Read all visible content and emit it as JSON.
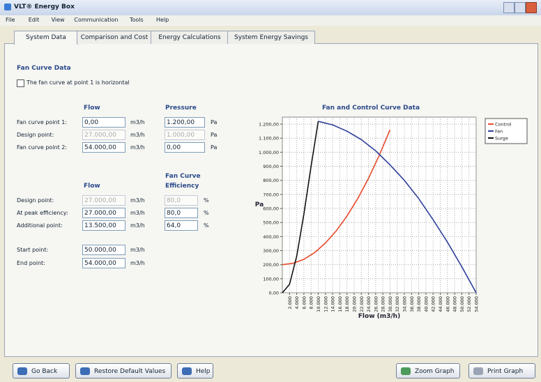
{
  "window": {
    "title": "VLT® Energy Box",
    "menu": [
      "File",
      "Edit",
      "View",
      "Communication",
      "Tools",
      "Help"
    ],
    "tabs": [
      "System Data",
      "Comparison and Cost",
      "Energy Calculations",
      "System Energy Savings"
    ]
  },
  "form": {
    "section": "Fan Curve Data",
    "checkbox": "The fan curve at point 1 is horizontal",
    "pressure_block": {
      "flow_header": "Flow",
      "pressure_header": "Pressure",
      "rows": [
        {
          "label": "Fan curve point 1:",
          "flow": "0,00",
          "flow_unit": "m3/h",
          "pressure": "1.200,00",
          "pressure_unit": "Pa"
        },
        {
          "label": "Design point:",
          "flow": "27.000,00",
          "flow_unit": "m3/h",
          "pressure": "1.000,00",
          "pressure_unit": "Pa",
          "disabled": true
        },
        {
          "label": "Fan curve point 2:",
          "flow": "54.000,00",
          "flow_unit": "m3/h",
          "pressure": "0,00",
          "pressure_unit": "Pa"
        }
      ]
    },
    "efficiency_block": {
      "flow_header": "Flow",
      "efficiency_header": [
        "Fan Curve",
        "Efficiency"
      ],
      "rows": [
        {
          "label": "Design point:",
          "flow": "27.000,00",
          "flow_unit": "m3/h",
          "efficiency": "80,0",
          "efficiency_unit": "%",
          "disabled": true
        },
        {
          "label": "At peak efficiency:",
          "flow": "27.000,00",
          "flow_unit": "m3/h",
          "efficiency": "80,0",
          "efficiency_unit": "%"
        },
        {
          "label": "Additional point:",
          "flow": "13.500,00",
          "flow_unit": "m3/h",
          "efficiency": "64,0",
          "efficiency_unit": "%"
        }
      ]
    },
    "range_block": [
      {
        "label": "Start point:",
        "value": "50.000,00",
        "unit": "m3/h"
      },
      {
        "label": "End point:",
        "value": "54.000,00",
        "unit": "m3/h"
      }
    ]
  },
  "buttons": {
    "left": [
      "Go Back",
      "Restore Default Values",
      "Help"
    ],
    "right": [
      "Zoom Graph",
      "Print Graph"
    ]
  },
  "chart_data": {
    "type": "line",
    "title": "Fan and Control Curve Data",
    "xlabel": "Flow (m3/h)",
    "ylabel": "Pa",
    "xlim": [
      0,
      54000
    ],
    "ylim": [
      0,
      1250
    ],
    "grid": true,
    "legend": "right",
    "xticks": [
      {
        "value": 2000,
        "label": "2.000"
      },
      {
        "value": 4000,
        "label": "4.000"
      },
      {
        "value": 6000,
        "label": "6.000"
      },
      {
        "value": 8000,
        "label": "8.000"
      },
      {
        "value": 10000,
        "label": "10.000"
      },
      {
        "value": 12000,
        "label": "12.000"
      },
      {
        "value": 14000,
        "label": "14.000"
      },
      {
        "value": 16000,
        "label": "16.000"
      },
      {
        "value": 18000,
        "label": "18.000"
      },
      {
        "value": 20000,
        "label": "20.000"
      },
      {
        "value": 22000,
        "label": "22.000"
      },
      {
        "value": 24000,
        "label": "24.000"
      },
      {
        "value": 26000,
        "label": "26.000"
      },
      {
        "value": 28000,
        "label": "28.000"
      },
      {
        "value": 30000,
        "label": "30.000"
      },
      {
        "value": 32000,
        "label": "32.000"
      },
      {
        "value": 34000,
        "label": "34.000"
      },
      {
        "value": 36000,
        "label": "36.000"
      },
      {
        "value": 38000,
        "label": "38.000"
      },
      {
        "value": 40000,
        "label": "40.000"
      },
      {
        "value": 42000,
        "label": "42.000"
      },
      {
        "value": 44000,
        "label": "44.000"
      },
      {
        "value": 46000,
        "label": "46.000"
      },
      {
        "value": 48000,
        "label": "48.000"
      },
      {
        "value": 50000,
        "label": "50.000"
      },
      {
        "value": 52000,
        "label": "52.000"
      },
      {
        "value": 54000,
        "label": "54.000"
      }
    ],
    "yticks": [
      {
        "value": 0,
        "label": "0,00"
      },
      {
        "value": 100,
        "label": "100,00"
      },
      {
        "value": 200,
        "label": "200,00"
      },
      {
        "value": 300,
        "label": "300,00"
      },
      {
        "value": 400,
        "label": "400,00"
      },
      {
        "value": 500,
        "label": "500,00"
      },
      {
        "value": 600,
        "label": "600,00"
      },
      {
        "value": 700,
        "label": "700,00"
      },
      {
        "value": 800,
        "label": "800,00"
      },
      {
        "value": 900,
        "label": "900,00"
      },
      {
        "value": 1000,
        "label": "1.000,00"
      },
      {
        "value": 1100,
        "label": "1.100,00"
      },
      {
        "value": 1200,
        "label": "1.200,00"
      }
    ],
    "series": [
      {
        "name": "Control",
        "color": "#e8492a",
        "x": [
          0,
          3000,
          6000,
          9000,
          12000,
          15000,
          18000,
          21000,
          24000,
          27000,
          30000
        ],
        "values": [
          200,
          210,
          238,
          286,
          354,
          440,
          546,
          670,
          814,
          978,
          1160
        ]
      },
      {
        "name": "Fan",
        "color": "#2e3f9a",
        "x": [
          10000,
          14000,
          18000,
          22000,
          26000,
          30000,
          34000,
          38000,
          42000,
          46000,
          50000,
          54000
        ],
        "values": [
          1220,
          1195,
          1150,
          1090,
          1010,
          910,
          800,
          670,
          520,
          360,
          185,
          0
        ]
      },
      {
        "name": "Surge",
        "color": "#111111",
        "x": [
          0,
          2000,
          4000,
          6000,
          8000,
          10000
        ],
        "values": [
          0,
          60,
          260,
          560,
          900,
          1220
        ]
      }
    ]
  }
}
